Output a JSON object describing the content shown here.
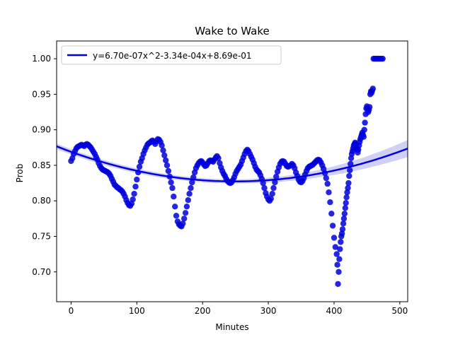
{
  "chart_data": {
    "type": "scatter",
    "title": "Wake to Wake",
    "xlabel": "Minutes",
    "ylabel": "Prob",
    "xlim": [
      -22,
      512
    ],
    "ylim": [
      0.658,
      1.025
    ],
    "xticks": [
      0,
      100,
      200,
      300,
      400,
      500
    ],
    "yticks": [
      0.7,
      0.75,
      0.8,
      0.85,
      0.9,
      0.95,
      1.0
    ],
    "xtick_labels": [
      "0",
      "100",
      "200",
      "300",
      "400",
      "500"
    ],
    "ytick_labels": [
      "0.70",
      "0.75",
      "0.80",
      "0.85",
      "0.90",
      "0.95",
      "1.00"
    ],
    "legend_position": "top-left",
    "grid": false,
    "point_color": "#0000dd",
    "fit_color": "#0000dd",
    "band_color": "#c8c8f4",
    "fit": {
      "label": "y=6.70e-07x^2-3.34e-04x+8.69e-01",
      "coeffs": [
        6.7e-07,
        -0.000334,
        0.869
      ],
      "band_halfwidth_at_edges": [
        0.004,
        0.012
      ]
    },
    "series_points": [
      [
        0,
        0.856
      ],
      [
        2,
        0.86
      ],
      [
        4,
        0.866
      ],
      [
        6,
        0.87
      ],
      [
        8,
        0.874
      ],
      [
        10,
        0.876
      ],
      [
        12,
        0.877
      ],
      [
        14,
        0.878
      ],
      [
        16,
        0.879
      ],
      [
        18,
        0.878
      ],
      [
        20,
        0.877
      ],
      [
        22,
        0.879
      ],
      [
        24,
        0.88
      ],
      [
        26,
        0.879
      ],
      [
        28,
        0.877
      ],
      [
        30,
        0.875
      ],
      [
        32,
        0.872
      ],
      [
        34,
        0.869
      ],
      [
        36,
        0.866
      ],
      [
        38,
        0.862
      ],
      [
        40,
        0.858
      ],
      [
        42,
        0.853
      ],
      [
        44,
        0.849
      ],
      [
        46,
        0.846
      ],
      [
        48,
        0.844
      ],
      [
        50,
        0.843
      ],
      [
        52,
        0.842
      ],
      [
        54,
        0.841
      ],
      [
        56,
        0.84
      ],
      [
        58,
        0.838
      ],
      [
        60,
        0.835
      ],
      [
        62,
        0.831
      ],
      [
        64,
        0.827
      ],
      [
        66,
        0.823
      ],
      [
        68,
        0.821
      ],
      [
        70,
        0.819
      ],
      [
        72,
        0.818
      ],
      [
        74,
        0.816
      ],
      [
        76,
        0.815
      ],
      [
        78,
        0.813
      ],
      [
        80,
        0.81
      ],
      [
        82,
        0.806
      ],
      [
        84,
        0.801
      ],
      [
        86,
        0.797
      ],
      [
        88,
        0.794
      ],
      [
        90,
        0.793
      ],
      [
        92,
        0.796
      ],
      [
        94,
        0.802
      ],
      [
        96,
        0.81
      ],
      [
        98,
        0.82
      ],
      [
        100,
        0.83
      ],
      [
        102,
        0.84
      ],
      [
        104,
        0.848
      ],
      [
        106,
        0.855
      ],
      [
        108,
        0.86
      ],
      [
        110,
        0.866
      ],
      [
        112,
        0.871
      ],
      [
        114,
        0.875
      ],
      [
        116,
        0.879
      ],
      [
        118,
        0.881
      ],
      [
        120,
        0.882
      ],
      [
        122,
        0.884
      ],
      [
        124,
        0.885
      ],
      [
        126,
        0.883
      ],
      [
        128,
        0.88
      ],
      [
        130,
        0.884
      ],
      [
        132,
        0.887
      ],
      [
        134,
        0.886
      ],
      [
        136,
        0.883
      ],
      [
        138,
        0.878
      ],
      [
        140,
        0.871
      ],
      [
        142,
        0.864
      ],
      [
        144,
        0.857
      ],
      [
        146,
        0.85
      ],
      [
        148,
        0.842
      ],
      [
        150,
        0.834
      ],
      [
        152,
        0.826
      ],
      [
        154,
        0.818
      ],
      [
        156,
        0.806
      ],
      [
        158,
        0.792
      ],
      [
        160,
        0.779
      ],
      [
        162,
        0.771
      ],
      [
        164,
        0.767
      ],
      [
        166,
        0.765
      ],
      [
        168,
        0.764
      ],
      [
        170,
        0.768
      ],
      [
        172,
        0.775
      ],
      [
        174,
        0.783
      ],
      [
        176,
        0.792
      ],
      [
        178,
        0.801
      ],
      [
        180,
        0.81
      ],
      [
        182,
        0.818
      ],
      [
        184,
        0.826
      ],
      [
        186,
        0.833
      ],
      [
        188,
        0.84
      ],
      [
        190,
        0.846
      ],
      [
        192,
        0.85
      ],
      [
        194,
        0.853
      ],
      [
        196,
        0.855
      ],
      [
        198,
        0.856
      ],
      [
        200,
        0.854
      ],
      [
        202,
        0.851
      ],
      [
        204,
        0.849
      ],
      [
        206,
        0.85
      ],
      [
        208,
        0.853
      ],
      [
        210,
        0.856
      ],
      [
        212,
        0.857
      ],
      [
        214,
        0.856
      ],
      [
        216,
        0.855
      ],
      [
        218,
        0.858
      ],
      [
        220,
        0.861
      ],
      [
        222,
        0.863
      ],
      [
        224,
        0.86
      ],
      [
        226,
        0.853
      ],
      [
        228,
        0.847
      ],
      [
        230,
        0.842
      ],
      [
        232,
        0.838
      ],
      [
        234,
        0.835
      ],
      [
        236,
        0.831
      ],
      [
        238,
        0.828
      ],
      [
        240,
        0.826
      ],
      [
        242,
        0.825
      ],
      [
        244,
        0.826
      ],
      [
        246,
        0.829
      ],
      [
        248,
        0.833
      ],
      [
        250,
        0.838
      ],
      [
        252,
        0.842
      ],
      [
        254,
        0.845
      ],
      [
        256,
        0.848
      ],
      [
        258,
        0.851
      ],
      [
        260,
        0.856
      ],
      [
        262,
        0.861
      ],
      [
        264,
        0.866
      ],
      [
        266,
        0.87
      ],
      [
        268,
        0.872
      ],
      [
        270,
        0.87
      ],
      [
        272,
        0.866
      ],
      [
        274,
        0.862
      ],
      [
        276,
        0.858
      ],
      [
        278,
        0.853
      ],
      [
        280,
        0.848
      ],
      [
        282,
        0.844
      ],
      [
        284,
        0.842
      ],
      [
        286,
        0.84
      ],
      [
        288,
        0.836
      ],
      [
        290,
        0.831
      ],
      [
        292,
        0.825
      ],
      [
        294,
        0.818
      ],
      [
        296,
        0.811
      ],
      [
        298,
        0.806
      ],
      [
        300,
        0.802
      ],
      [
        302,
        0.8
      ],
      [
        304,
        0.803
      ],
      [
        306,
        0.81
      ],
      [
        308,
        0.818
      ],
      [
        310,
        0.826
      ],
      [
        312,
        0.834
      ],
      [
        314,
        0.841
      ],
      [
        316,
        0.847
      ],
      [
        318,
        0.852
      ],
      [
        320,
        0.855
      ],
      [
        322,
        0.856
      ],
      [
        324,
        0.855
      ],
      [
        326,
        0.852
      ],
      [
        328,
        0.849
      ],
      [
        330,
        0.848
      ],
      [
        332,
        0.849
      ],
      [
        334,
        0.85
      ],
      [
        336,
        0.852
      ],
      [
        338,
        0.85
      ],
      [
        340,
        0.846
      ],
      [
        342,
        0.84
      ],
      [
        344,
        0.835
      ],
      [
        346,
        0.83
      ],
      [
        348,
        0.827
      ],
      [
        350,
        0.826
      ],
      [
        352,
        0.828
      ],
      [
        354,
        0.832
      ],
      [
        356,
        0.837
      ],
      [
        358,
        0.842
      ],
      [
        360,
        0.846
      ],
      [
        362,
        0.848
      ],
      [
        364,
        0.849
      ],
      [
        366,
        0.85
      ],
      [
        368,
        0.851
      ],
      [
        370,
        0.853
      ],
      [
        372,
        0.855
      ],
      [
        374,
        0.857
      ],
      [
        376,
        0.858
      ],
      [
        378,
        0.857
      ],
      [
        380,
        0.854
      ],
      [
        382,
        0.85
      ],
      [
        384,
        0.845
      ],
      [
        386,
        0.839
      ],
      [
        388,
        0.832
      ],
      [
        390,
        0.824
      ],
      [
        392,
        0.812
      ],
      [
        394,
        0.798
      ],
      [
        396,
        0.782
      ],
      [
        398,
        0.765
      ],
      [
        400,
        0.748
      ],
      [
        402,
        0.735
      ],
      [
        404,
        0.725
      ],
      [
        405,
        0.71
      ],
      [
        406,
        0.683
      ],
      [
        407,
        0.7
      ],
      [
        408,
        0.718
      ],
      [
        409,
        0.732
      ],
      [
        410,
        0.742
      ],
      [
        411,
        0.75
      ],
      [
        412,
        0.754
      ],
      [
        413,
        0.76
      ],
      [
        414,
        0.768
      ],
      [
        415,
        0.775
      ],
      [
        416,
        0.782
      ],
      [
        417,
        0.79
      ],
      [
        418,
        0.797
      ],
      [
        419,
        0.805
      ],
      [
        420,
        0.812
      ],
      [
        421,
        0.818
      ],
      [
        422,
        0.825
      ],
      [
        423,
        0.835
      ],
      [
        424,
        0.843
      ],
      [
        425,
        0.852
      ],
      [
        426,
        0.86
      ],
      [
        427,
        0.866
      ],
      [
        428,
        0.87
      ],
      [
        429,
        0.874
      ],
      [
        430,
        0.878
      ],
      [
        431,
        0.88
      ],
      [
        432,
        0.882
      ],
      [
        433,
        0.88
      ],
      [
        434,
        0.876
      ],
      [
        435,
        0.872
      ],
      [
        436,
        0.868
      ],
      [
        437,
        0.872
      ],
      [
        438,
        0.878
      ],
      [
        439,
        0.883
      ],
      [
        440,
        0.887
      ],
      [
        441,
        0.89
      ],
      [
        442,
        0.893
      ],
      [
        443,
        0.896
      ],
      [
        444,
        0.893
      ],
      [
        445,
        0.89
      ],
      [
        446,
        0.9
      ],
      [
        447,
        0.91
      ],
      [
        448,
        0.922
      ],
      [
        449,
        0.93
      ],
      [
        450,
        0.933
      ],
      [
        451,
        0.93
      ],
      [
        452,
        0.925
      ],
      [
        453,
        0.928
      ],
      [
        454,
        0.932
      ],
      [
        455,
        0.95
      ],
      [
        456,
        0.954
      ],
      [
        457,
        0.952
      ],
      [
        458,
        0.955
      ],
      [
        459,
        0.958
      ],
      [
        460,
        1.0
      ],
      [
        462,
        1.0
      ],
      [
        464,
        1.0
      ],
      [
        466,
        1.0
      ],
      [
        468,
        1.0
      ],
      [
        470,
        1.0
      ],
      [
        472,
        1.0
      ],
      [
        474,
        1.0
      ]
    ]
  }
}
